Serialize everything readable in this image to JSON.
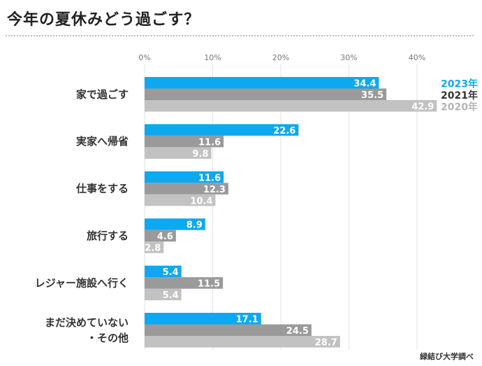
{
  "title": "今年の夏休みどう過ごす？",
  "source": "緑結び大学調べ",
  "colors": {
    "series_2023": "#0ea8f0",
    "series_2021": "#9a9a9a",
    "series_2020": "#c2c2c2",
    "legend_2023": "#0ea8f0",
    "legend_2021": "#333333",
    "legend_2020": "#b4b4b4",
    "grid": "#e2e2e2",
    "tick": "#777777",
    "category_text": "#333333"
  },
  "chart_data": {
    "type": "bar",
    "orientation": "horizontal",
    "title": "今年の夏休みどう過ごす？",
    "xlim": [
      0,
      45
    ],
    "ticks": [
      0,
      10,
      20,
      30,
      40
    ],
    "tick_labels": [
      "0%",
      "10%",
      "20%",
      "30%",
      "40%"
    ],
    "grid": true,
    "legend_position": "right",
    "categories": [
      [
        "家で過ごす"
      ],
      [
        "実家へ帰省"
      ],
      [
        "仕事をする"
      ],
      [
        "旅行する"
      ],
      [
        "レジャー施設へ行く"
      ],
      [
        "まだ決めていない",
        "・その他"
      ]
    ],
    "series": [
      {
        "name": "2023年",
        "values": [
          34.4,
          22.6,
          11.6,
          8.9,
          5.4,
          17.1
        ]
      },
      {
        "name": "2021年",
        "values": [
          35.5,
          11.6,
          12.3,
          4.6,
          11.5,
          24.5
        ]
      },
      {
        "name": "2020年",
        "values": [
          42.9,
          9.8,
          10.4,
          2.8,
          5.4,
          28.7
        ]
      }
    ]
  }
}
